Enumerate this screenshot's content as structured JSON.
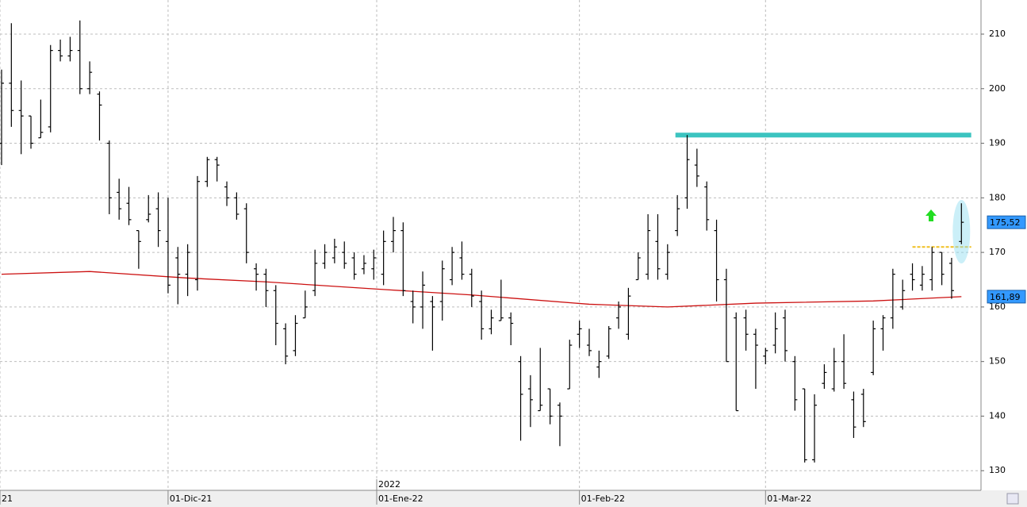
{
  "chart_data": {
    "type": "ohlc",
    "color": "#000000",
    "ohlc": [
      [
        190,
        203.5,
        186,
        201
      ],
      [
        201,
        212,
        193,
        196
      ],
      [
        196,
        201.5,
        188,
        195
      ],
      [
        195,
        195,
        189,
        190
      ],
      [
        191,
        198,
        191,
        192
      ],
      [
        193,
        208,
        192,
        207
      ],
      [
        207,
        209,
        205,
        206
      ],
      [
        206,
        209.5,
        205,
        207
      ],
      [
        207,
        212.5,
        199,
        200
      ],
      [
        200,
        205,
        199,
        203
      ],
      [
        199,
        199.5,
        190.5,
        197
      ],
      [
        190,
        190.5,
        177,
        180
      ],
      [
        181,
        183.5,
        176,
        178
      ],
      [
        179,
        182,
        175,
        176
      ],
      [
        174,
        174,
        167,
        172
      ],
      [
        176,
        180.5,
        175.5,
        177
      ],
      [
        178,
        181,
        171,
        174
      ],
      [
        172,
        180,
        162.5,
        164
      ],
      [
        169,
        171,
        160.5,
        166
      ],
      [
        166,
        171.5,
        162,
        170
      ],
      [
        165,
        184,
        163,
        183
      ],
      [
        183,
        187.5,
        182,
        187
      ],
      [
        187,
        187.5,
        183,
        186
      ],
      [
        182,
        183,
        178.5,
        180
      ],
      [
        180,
        181,
        176,
        177
      ],
      [
        178,
        179,
        168,
        170
      ],
      [
        167,
        168,
        163,
        166
      ],
      [
        166,
        167,
        160,
        163
      ],
      [
        163,
        164,
        153,
        157
      ],
      [
        156,
        157,
        149.5,
        151
      ],
      [
        152,
        158.5,
        151,
        157
      ],
      [
        158,
        163,
        158,
        160
      ],
      [
        163,
        170.5,
        162,
        168
      ],
      [
        168,
        171.5,
        167,
        170
      ],
      [
        169,
        172.5,
        168,
        171
      ],
      [
        170,
        172,
        167,
        168
      ],
      [
        169,
        170,
        165,
        166
      ],
      [
        167,
        169.5,
        166,
        168
      ],
      [
        167,
        170.5,
        165,
        169
      ],
      [
        166,
        174,
        164,
        172
      ],
      [
        172,
        176.5,
        170,
        174
      ],
      [
        174,
        175.5,
        162,
        163
      ],
      [
        161,
        163,
        157,
        160
      ],
      [
        160,
        166.5,
        156,
        164
      ],
      [
        161,
        162,
        152,
        160
      ],
      [
        161,
        168.5,
        157.5,
        167
      ],
      [
        165,
        171,
        164,
        170
      ],
      [
        169,
        172,
        165,
        166
      ],
      [
        166,
        167,
        160,
        162
      ],
      [
        161,
        163,
        154,
        156
      ],
      [
        156,
        159.5,
        155,
        158
      ],
      [
        157.5,
        165,
        157.5,
        158
      ],
      [
        158,
        159,
        153,
        157
      ],
      [
        150,
        151,
        135.5,
        144
      ],
      [
        145,
        147.5,
        138,
        143
      ],
      [
        141,
        152.5,
        141,
        142
      ],
      [
        145,
        145,
        138.5,
        140
      ],
      [
        142,
        142.5,
        134.5,
        140
      ],
      [
        145,
        154,
        145,
        153
      ],
      [
        155,
        157.5,
        152.5,
        156
      ],
      [
        153,
        156,
        151,
        152
      ],
      [
        149,
        152,
        147,
        150
      ],
      [
        151,
        156.5,
        150.5,
        156
      ],
      [
        158,
        161,
        156,
        160
      ],
      [
        155,
        163.5,
        154,
        162
      ],
      [
        165,
        170,
        165,
        169
      ],
      [
        166,
        177,
        165,
        174
      ],
      [
        172,
        177,
        165,
        167
      ],
      [
        166,
        171.5,
        165,
        170
      ],
      [
        174,
        180.5,
        173,
        178
      ],
      [
        180,
        191.5,
        178,
        187
      ],
      [
        186,
        189,
        182,
        184
      ],
      [
        182,
        183,
        174,
        176
      ],
      [
        174,
        176,
        161,
        165
      ],
      [
        165,
        167,
        150,
        150
      ],
      [
        158,
        159,
        141,
        141
      ],
      [
        158,
        159.5,
        152,
        155
      ],
      [
        155,
        156,
        145,
        153
      ],
      [
        151,
        152.5,
        149.5,
        152
      ],
      [
        153,
        159,
        151.5,
        156
      ],
      [
        158,
        159.5,
        150,
        152
      ],
      [
        150,
        151,
        141,
        143
      ],
      [
        145,
        145,
        131.5,
        132
      ],
      [
        132,
        144,
        131.5,
        142
      ],
      [
        146,
        149.5,
        145,
        148
      ],
      [
        145,
        152.5,
        144.5,
        150
      ],
      [
        150,
        155,
        145,
        146
      ],
      [
        143,
        144.5,
        136,
        138
      ],
      [
        144,
        145,
        138,
        139
      ],
      [
        148,
        157.5,
        147.5,
        156
      ],
      [
        156,
        158.5,
        152,
        158
      ],
      [
        158,
        167,
        156,
        166
      ],
      [
        160,
        165,
        159.5,
        163
      ],
      [
        166,
        168,
        163,
        165
      ],
      [
        164,
        167.5,
        163,
        166
      ],
      [
        165,
        171,
        163,
        170
      ],
      [
        170,
        170,
        164,
        166
      ],
      [
        168,
        169,
        161.5,
        163
      ],
      [
        172,
        179,
        171.5,
        175.52
      ]
    ],
    "ma": {
      "color": "#cc1111",
      "x": [
        0,
        9,
        19,
        27,
        39,
        48,
        60,
        68,
        77,
        89,
        98
      ],
      "values": [
        166,
        166.5,
        165.3,
        164.6,
        163.2,
        162.2,
        160.5,
        160,
        160.7,
        161.1,
        161.89
      ]
    },
    "resistance": {
      "color": "#3cc4c0",
      "value": 191.5,
      "x": [
        68.8,
        99
      ]
    },
    "support": {
      "color": "#f0c020",
      "value": 171,
      "x": [
        93,
        99
      ]
    },
    "last_label": {
      "value": 175.52,
      "label": "175,52"
    },
    "ma_label": {
      "value": 161.89,
      "label": "161,89"
    },
    "xlim": [
      -0.16,
      100
    ],
    "ylim": [
      126.4,
      216.25
    ],
    "yticks": [
      130,
      140,
      150,
      160,
      170,
      180,
      190,
      200,
      210
    ],
    "xticks": [
      {
        "value": -0.16,
        "label": "21"
      },
      {
        "value": 17,
        "label": "01-Dic-21"
      },
      {
        "value": 38.3,
        "label": "01-Ene-22"
      },
      {
        "value": 59,
        "label": "01-Feb-22"
      },
      {
        "value": 78,
        "label": "01-Mar-22"
      }
    ],
    "year_label": {
      "value": 38.3,
      "label": "2022"
    },
    "grid": true
  }
}
